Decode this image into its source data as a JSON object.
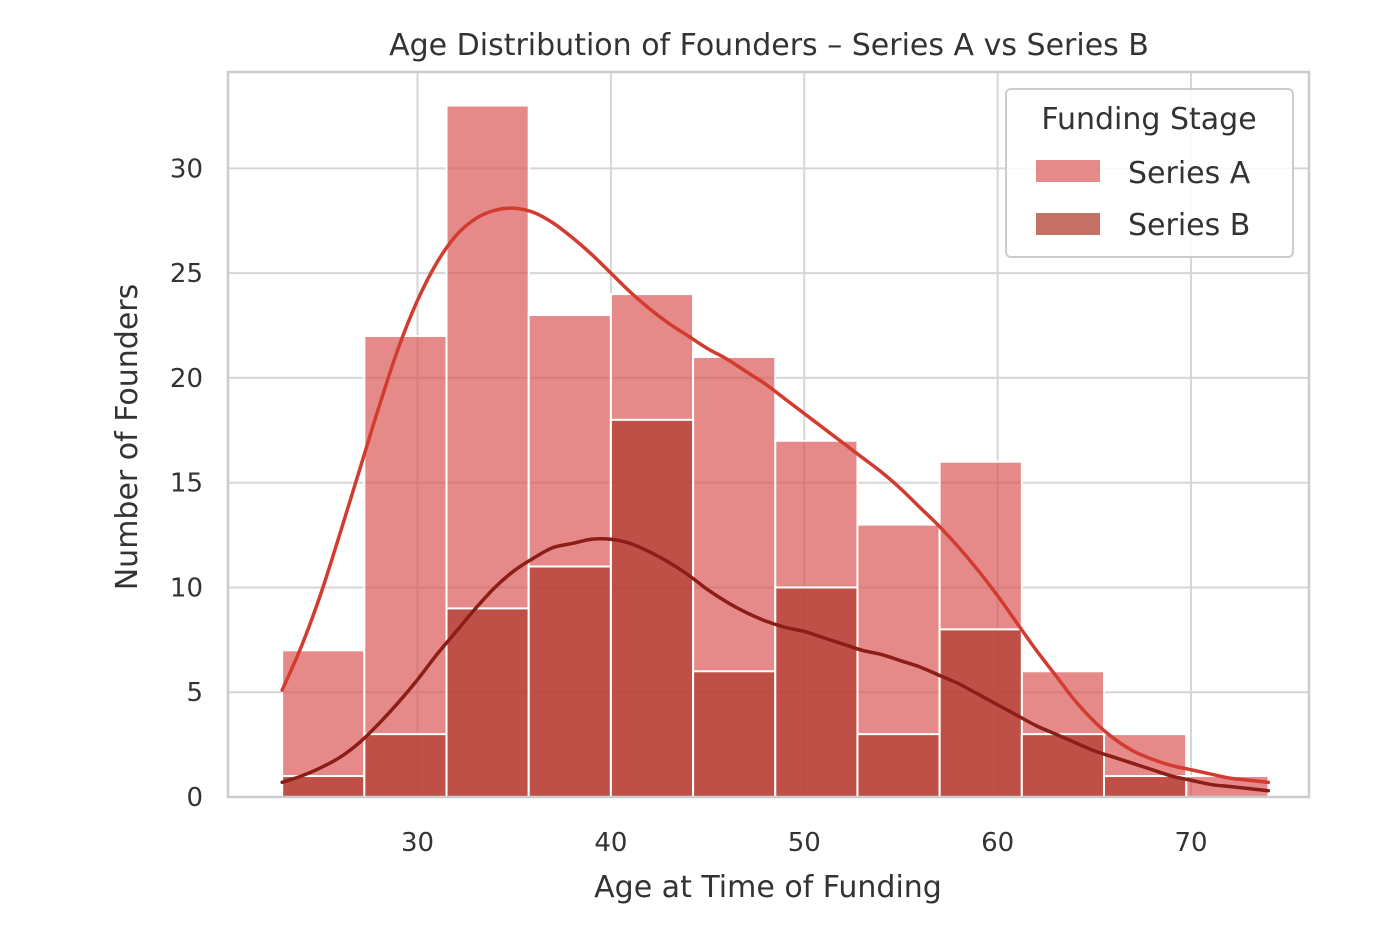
{
  "chart_data": {
    "type": "bar",
    "title": "Age Distribution of Founders – Series A vs Series B",
    "xlabel": "Age at Time of Funding",
    "ylabel": "Number of Founders",
    "xlim": [
      20.2,
      76.1
    ],
    "ylim": [
      0,
      34.6
    ],
    "xticks": [
      30,
      40,
      50,
      60,
      70
    ],
    "yticks": [
      0,
      5,
      10,
      15,
      20,
      25,
      30
    ],
    "grid": true,
    "legend": {
      "title": "Funding Stage",
      "placement": "top-right"
    },
    "bin_edges": [
      23.0,
      27.25,
      31.5,
      35.75,
      40.0,
      44.25,
      48.5,
      52.75,
      57.0,
      61.25,
      65.5,
      69.75,
      74.0
    ],
    "series": [
      {
        "name": "Series A",
        "color": "#d9534f",
        "counts": [
          7,
          22,
          33,
          23,
          24,
          21,
          17,
          13,
          16,
          6,
          3,
          1
        ],
        "kde_color": "#d23c30",
        "kde": {
          "x": [
            23,
            24,
            25,
            26,
            27,
            28,
            29,
            30,
            31,
            32,
            33,
            34,
            35,
            36,
            37,
            38,
            39,
            40,
            41,
            42,
            43,
            44,
            45,
            46,
            47,
            48,
            49,
            50,
            51,
            52,
            53,
            54,
            55,
            56,
            57,
            58,
            59,
            60,
            61,
            62,
            63,
            64,
            65,
            66,
            67,
            68,
            69,
            70,
            71,
            72,
            73,
            74
          ],
          "y": [
            5.1,
            7.2,
            9.7,
            12.6,
            15.6,
            18.6,
            21.4,
            23.7,
            25.5,
            26.8,
            27.6,
            28.0,
            28.1,
            27.9,
            27.4,
            26.7,
            25.9,
            25.0,
            24.1,
            23.3,
            22.6,
            22.0,
            21.4,
            20.9,
            20.3,
            19.7,
            19.0,
            18.3,
            17.6,
            16.9,
            16.2,
            15.5,
            14.7,
            13.8,
            12.9,
            11.9,
            10.8,
            9.6,
            8.3,
            7.0,
            5.8,
            4.6,
            3.6,
            2.8,
            2.2,
            1.8,
            1.5,
            1.3,
            1.1,
            0.9,
            0.8,
            0.7
          ]
        }
      },
      {
        "name": "Series B",
        "color": "#b03a2e",
        "counts": [
          1,
          3,
          9,
          11,
          18,
          6,
          10,
          3,
          8,
          3,
          1,
          0
        ],
        "kde_color": "#8b1e16",
        "kde": {
          "x": [
            23,
            24,
            25,
            26,
            27,
            28,
            29,
            30,
            31,
            32,
            33,
            34,
            35,
            36,
            37,
            38,
            39,
            40,
            41,
            42,
            43,
            44,
            45,
            46,
            47,
            48,
            49,
            50,
            51,
            52,
            53,
            54,
            55,
            56,
            57,
            58,
            59,
            60,
            61,
            62,
            63,
            64,
            65,
            66,
            67,
            68,
            69,
            70,
            71,
            72,
            73,
            74
          ],
          "y": [
            0.7,
            1.0,
            1.4,
            1.9,
            2.6,
            3.5,
            4.5,
            5.6,
            6.8,
            7.9,
            9.0,
            10.0,
            10.8,
            11.4,
            11.9,
            12.1,
            12.3,
            12.3,
            12.1,
            11.7,
            11.2,
            10.6,
            9.9,
            9.3,
            8.8,
            8.4,
            8.1,
            7.9,
            7.6,
            7.3,
            7.0,
            6.8,
            6.5,
            6.2,
            5.8,
            5.4,
            4.9,
            4.4,
            3.9,
            3.4,
            3.0,
            2.6,
            2.2,
            1.9,
            1.6,
            1.3,
            1.0,
            0.8,
            0.6,
            0.5,
            0.4,
            0.3
          ]
        }
      }
    ]
  }
}
